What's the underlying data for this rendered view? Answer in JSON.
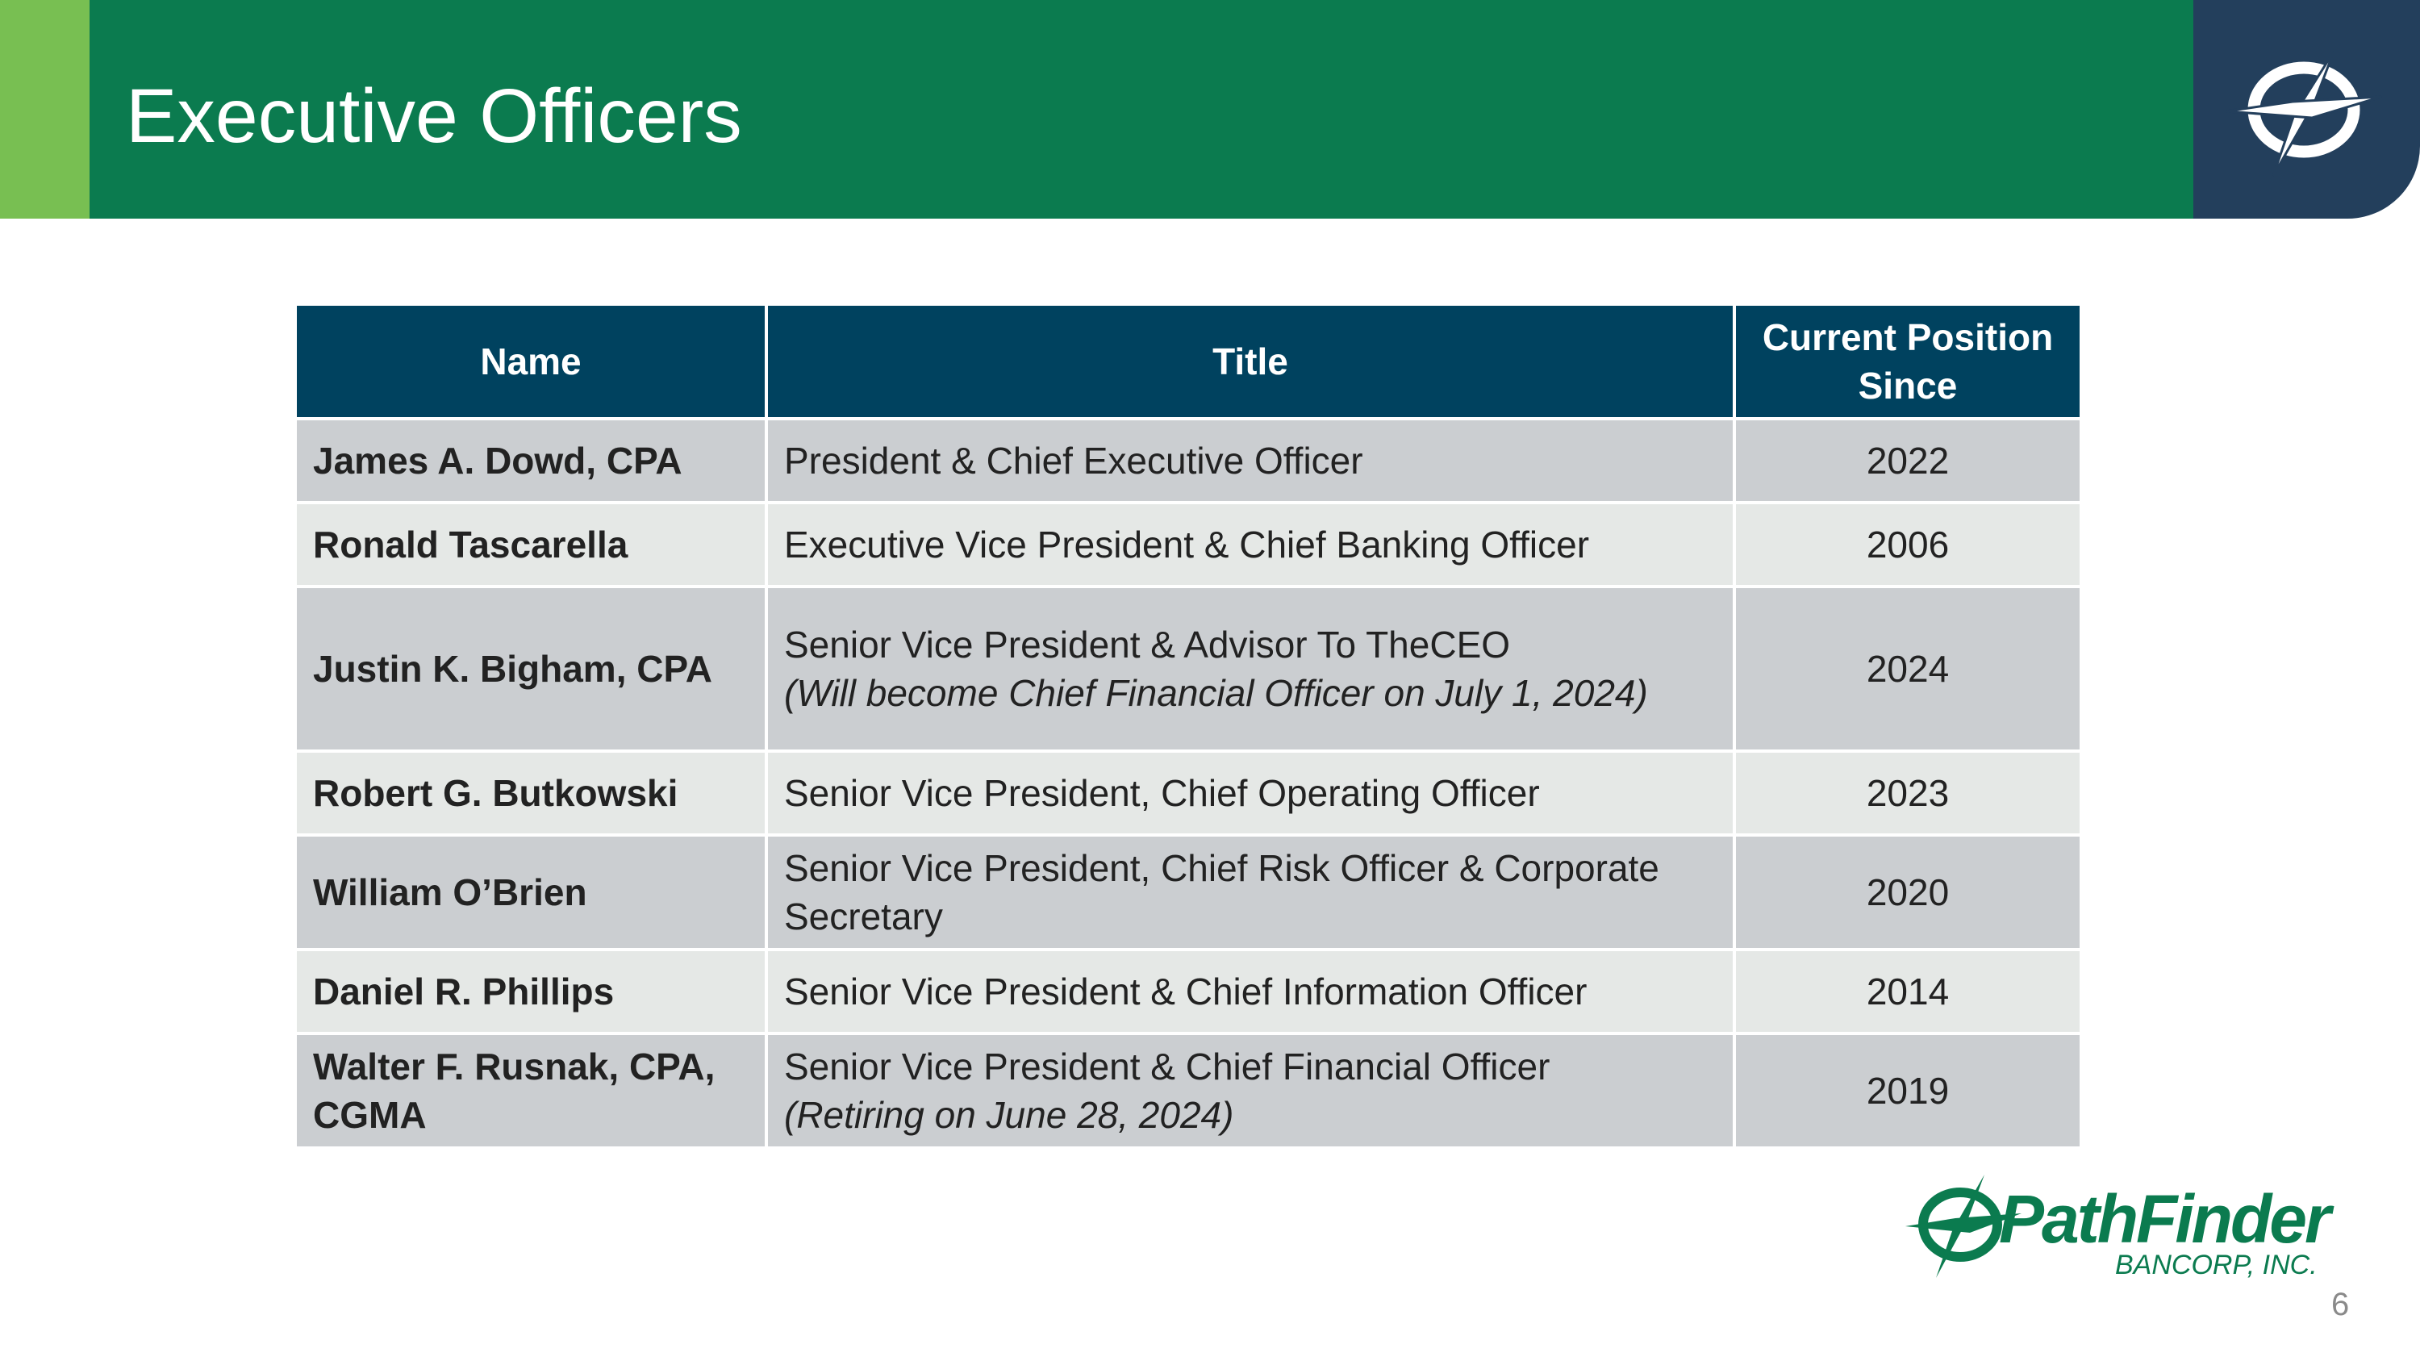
{
  "header": {
    "title": "Executive Officers",
    "colors": {
      "accent": "#78bf52",
      "band": "#0b7b4f",
      "logo_tab": "#233f5c"
    },
    "logo_icon": "compass-icon"
  },
  "table": {
    "columns": {
      "name": "Name",
      "title": "Title",
      "since": "Current Position Since"
    },
    "colors": {
      "header_bg": "#00425f",
      "row_dark": "#cbced1",
      "row_light": "#e5e8e6"
    },
    "rows": [
      {
        "name": "James A. Dowd, CPA",
        "title": "President & Chief Executive Officer",
        "note": "",
        "since": "2022"
      },
      {
        "name": "Ronald Tascarella",
        "title": "Executive Vice President & Chief Banking Officer",
        "note": "",
        "since": "2006"
      },
      {
        "name": "Justin K. Bigham, CPA",
        "title": "Senior Vice President & Advisor To TheCEO",
        "note": "(Will become Chief Financial Officer on July 1, 2024)",
        "since": "2024"
      },
      {
        "name": "Robert G. Butkowski",
        "title": "Senior Vice President, Chief Operating Officer",
        "note": "",
        "since": "2023"
      },
      {
        "name": "William O’Brien",
        "title": "Senior Vice President, Chief Risk Officer & Corporate Secretary",
        "note": "",
        "since": "2020"
      },
      {
        "name": "Daniel R. Phillips",
        "title": "Senior Vice President & Chief Information Officer",
        "note": "",
        "since": "2014"
      },
      {
        "name": "Walter F. Rusnak, CPA, CGMA",
        "title": "Senior Vice President & Chief Financial Officer",
        "note": "(Retiring on June 28, 2024)",
        "since": "2019"
      }
    ]
  },
  "footer": {
    "brand_name": "PathFinder",
    "brand_sub": "BANCORP, INC.",
    "brand_color": "#0b7b4f",
    "page_number": "6"
  }
}
